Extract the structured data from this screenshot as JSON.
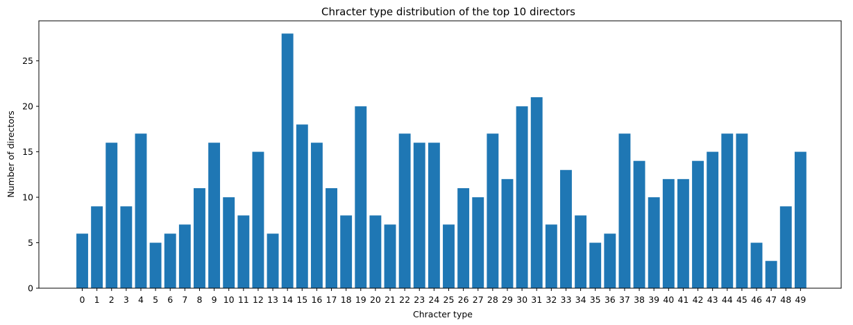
{
  "chart_data": {
    "type": "bar",
    "title": "Chracter type distribution of the top 10 directors",
    "xlabel": "Chracter type",
    "ylabel": "Number of directors",
    "categories": [
      "0",
      "1",
      "2",
      "3",
      "4",
      "5",
      "6",
      "7",
      "8",
      "9",
      "10",
      "11",
      "12",
      "13",
      "14",
      "15",
      "16",
      "17",
      "18",
      "19",
      "20",
      "21",
      "22",
      "23",
      "24",
      "25",
      "26",
      "27",
      "28",
      "29",
      "30",
      "31",
      "32",
      "33",
      "34",
      "35",
      "36",
      "37",
      "38",
      "39",
      "40",
      "41",
      "42",
      "43",
      "44",
      "45",
      "46",
      "47",
      "48",
      "49"
    ],
    "values": [
      6,
      9,
      16,
      9,
      17,
      5,
      6,
      7,
      11,
      16,
      10,
      8,
      15,
      6,
      28,
      18,
      16,
      11,
      8,
      20,
      8,
      7,
      17,
      16,
      16,
      7,
      11,
      10,
      17,
      12,
      20,
      21,
      7,
      13,
      8,
      5,
      6,
      17,
      14,
      10,
      12,
      12,
      14,
      15,
      17,
      17,
      5,
      3,
      9,
      15
    ],
    "yticks": [
      0,
      5,
      10,
      15,
      20,
      25
    ],
    "ylim": [
      0,
      29.4
    ],
    "grid": false,
    "bar_color": "#1f77b4"
  }
}
